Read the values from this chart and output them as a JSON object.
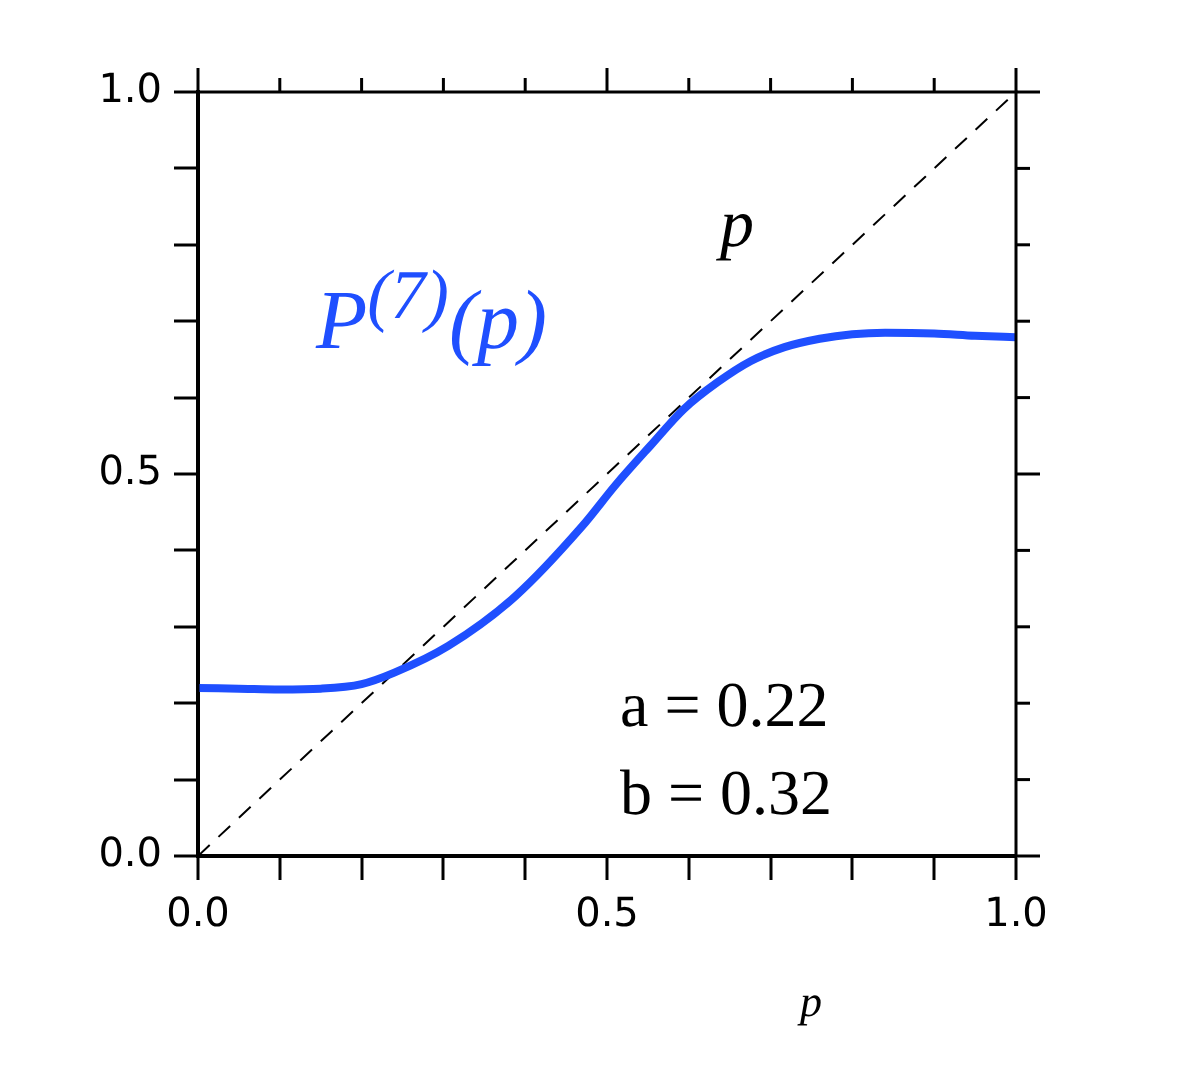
{
  "chart_data": {
    "type": "line",
    "xlabel": "p",
    "x": [
      0,
      0.05,
      0.1,
      0.15,
      0.2,
      0.24,
      0.306,
      0.388,
      0.47,
      0.51,
      0.553,
      0.594,
      0.635,
      0.676,
      0.717,
      0.76,
      0.8,
      0.84,
      0.9,
      0.95,
      1
    ],
    "series": [
      {
        "name": "P$^{(7)}$(p)",
        "color": "#1f4fff",
        "values": [
          0.22,
          0.219,
          0.218,
          0.219,
          0.225,
          0.24,
          0.275,
          0.34,
          0.432,
          0.485,
          0.537,
          0.585,
          0.62,
          0.648,
          0.666,
          0.677,
          0.683,
          0.685,
          0.684,
          0.681,
          0.679
        ]
      },
      {
        "name": "p",
        "color": "#000000",
        "line_style": "dashed",
        "x": [
          0,
          1
        ],
        "values": [
          0,
          1
        ]
      }
    ],
    "annotations": [
      "a = 0.22",
      "b = 0.32"
    ],
    "xlim": [
      0,
      1
    ],
    "ylim": [
      0,
      1
    ],
    "xticks": [
      {
        "value": 0,
        "label": "0.0"
      },
      {
        "value": 0.1,
        "label": null
      },
      {
        "value": 0.2,
        "label": null
      },
      {
        "value": 0.3,
        "label": null
      },
      {
        "value": 0.4,
        "label": null
      },
      0.5,
      {
        "value": 0.6,
        "label": null
      },
      {
        "value": 0.7,
        "label": null
      },
      {
        "value": 0.8,
        "label": null
      },
      {
        "value": 0.9,
        "label": null
      },
      {
        "value": 1,
        "label": "1.0"
      }
    ],
    "yticks": [
      {
        "value": 0,
        "label": "0.0"
      },
      {
        "value": 0.1,
        "label": null
      },
      {
        "value": 0.2,
        "label": null
      },
      {
        "value": 0.3,
        "label": null
      },
      {
        "value": 0.4,
        "label": null
      },
      0.5,
      {
        "value": 0.6,
        "label": null
      },
      {
        "value": 0.7,
        "label": null
      },
      {
        "value": 0.8,
        "label": null
      },
      {
        "value": 0.9,
        "label": null
      },
      {
        "value": 1,
        "label": "1.0"
      }
    ],
    "grid": false,
    "legend": false,
    "marker": "none",
    "line_style": "solid"
  }
}
